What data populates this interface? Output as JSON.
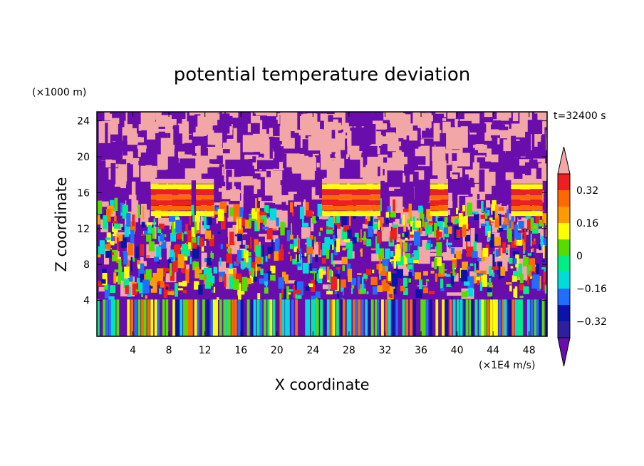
{
  "chart_data": {
    "type": "heatmap",
    "title": "potential temperature deviation",
    "xlabel": "X coordinate",
    "ylabel": "Z coordinate",
    "x_unit": "(×1E4 m/s)",
    "y_unit": "(×1000 m)",
    "time_label": "t=32400 s",
    "xlim": [
      0,
      50
    ],
    "ylim": [
      0,
      25
    ],
    "x_ticks": [
      4,
      8,
      12,
      16,
      20,
      24,
      28,
      32,
      36,
      40,
      44,
      48
    ],
    "y_ticks": [
      4,
      8,
      12,
      16,
      20,
      24
    ],
    "colorbar": {
      "levels": [
        -0.4,
        -0.32,
        -0.24,
        -0.16,
        -0.08,
        0,
        0.08,
        0.16,
        0.24,
        0.32,
        0.4
      ],
      "tick_values": [
        0.32,
        0.16,
        0,
        -0.16,
        -0.32
      ],
      "tick_labels": [
        "0.32",
        "0.16",
        "0",
        "−0.16",
        "−0.32"
      ],
      "colors_low_to_high": [
        "#6a0dad",
        "#2d1f9e",
        "#0a14a8",
        "#1f6eff",
        "#00dcdc",
        "#00ee88",
        "#55dd00",
        "#ffff00",
        "#ff9a00",
        "#ff6a00",
        "#ee1f1f",
        "#f2a6a6"
      ],
      "extend": "both"
    }
  }
}
